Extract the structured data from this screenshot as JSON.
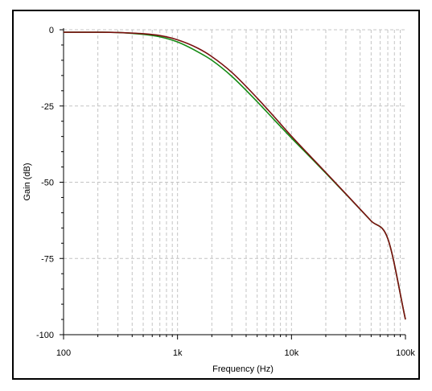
{
  "chart_data": {
    "type": "line",
    "xlabel": "Frequency (Hz)",
    "ylabel": "Gain (dB)",
    "x_scale": "log",
    "xlim": [
      100,
      100000
    ],
    "ylim": [
      -100,
      0
    ],
    "x_ticks": [
      100,
      1000,
      10000,
      100000
    ],
    "x_tick_labels": [
      "100",
      "1k",
      "10k",
      "100k"
    ],
    "y_ticks": [
      0,
      -25,
      -50,
      -75,
      -100
    ],
    "y_tick_labels": [
      "0",
      "-25",
      "-50",
      "-75",
      "-100"
    ],
    "grid": true,
    "series": [
      {
        "color": "#7a1010",
        "x": [
          100,
          200,
          300,
          500,
          700,
          1000,
          1500,
          2000,
          3000,
          5000,
          7000,
          10000,
          15000,
          20000,
          30000,
          50000,
          70000,
          100000
        ],
        "y": [
          -0.8,
          -0.8,
          -0.9,
          -1.3,
          -1.9,
          -3.3,
          -6.0,
          -8.8,
          -14.0,
          -22.4,
          -28.4,
          -34.9,
          -41.9,
          -46.8,
          -53.8,
          -62.7,
          -68.5,
          -95.0
        ]
      },
      {
        "color": "#138a13",
        "x": [
          100,
          200,
          300,
          500,
          700,
          1000,
          1500,
          2000,
          3000,
          5000,
          7000,
          10000,
          15000,
          20000,
          30000,
          50000,
          70000,
          100000
        ],
        "y": [
          -0.8,
          -0.8,
          -0.9,
          -1.5,
          -2.3,
          -4.0,
          -7.2,
          -10.0,
          -15.3,
          -23.6,
          -29.4,
          -35.5,
          -42.2,
          -47.0,
          -53.9,
          -62.7,
          -68.5,
          -95.0
        ]
      }
    ]
  }
}
